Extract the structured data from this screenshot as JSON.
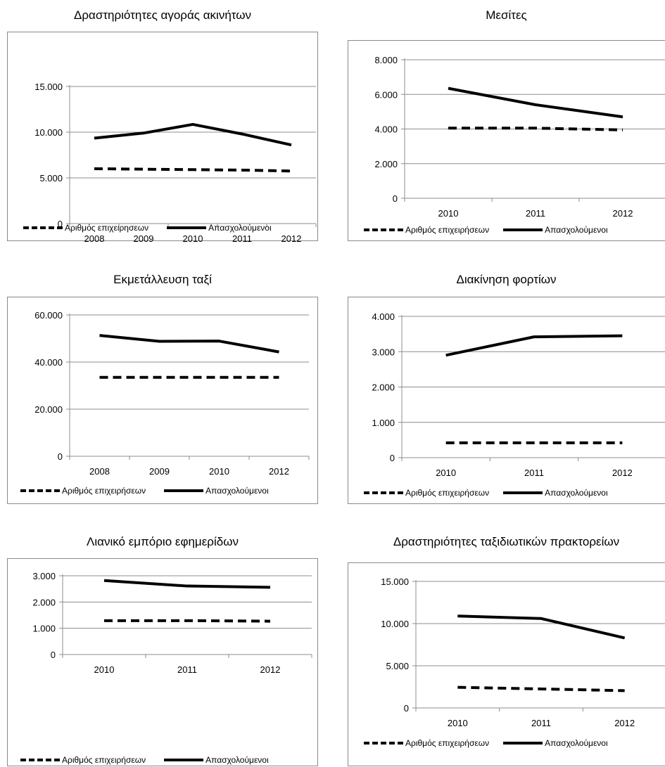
{
  "chart_data": [
    {
      "type": "line",
      "title": "Δραστηριότητες αγοράς ακινήτων",
      "categories": [
        "2008",
        "2009",
        "2010",
        "2011",
        "2012"
      ],
      "y_ticks": [
        "0",
        "5.000",
        "10.000",
        "15.000"
      ],
      "ylim": [
        0,
        15000
      ],
      "grid": true,
      "legend_position": "bottom",
      "series": [
        {
          "name": "Αριθμός επιχειρησεων",
          "style": "dashed",
          "values": [
            6000,
            5950,
            5900,
            5850,
            5750
          ]
        },
        {
          "name": "Απασχολούμενοι",
          "style": "solid",
          "values": [
            9350,
            9900,
            10850,
            9800,
            8600
          ]
        }
      ]
    },
    {
      "type": "line",
      "title": "Μεσίτες",
      "categories": [
        "2010",
        "2011",
        "2012"
      ],
      "y_ticks": [
        "0",
        "2.000",
        "4.000",
        "6.000",
        "8.000"
      ],
      "ylim": [
        0,
        8000
      ],
      "grid": true,
      "legend_position": "bottom",
      "series": [
        {
          "name": "Αριθμός επιχειρήσεων",
          "style": "dashed",
          "values": [
            4050,
            4050,
            3950
          ]
        },
        {
          "name": "Απασχολούμενοι",
          "style": "solid",
          "values": [
            6350,
            5400,
            4700
          ]
        }
      ]
    },
    {
      "type": "line",
      "title": "Εκμετάλλευση ταξί",
      "categories": [
        "2008",
        "2009",
        "2010",
        "2012"
      ],
      "y_ticks": [
        "0",
        "20.000",
        "40.000",
        "60.000"
      ],
      "ylim": [
        0,
        60000
      ],
      "grid": true,
      "legend_position": "bottom",
      "series": [
        {
          "name": "Αριθμός επιχειρήσεων",
          "style": "dashed",
          "values": [
            33500,
            33500,
            33500,
            33500
          ]
        },
        {
          "name": "Απασχολούμενοι",
          "style": "solid",
          "values": [
            51300,
            48800,
            48900,
            44300
          ]
        }
      ]
    },
    {
      "type": "line",
      "title": "Διακίνηση φορτίων",
      "categories": [
        "2010",
        "2011",
        "2012"
      ],
      "y_ticks": [
        "0",
        "1.000",
        "2.000",
        "3.000",
        "4.000"
      ],
      "ylim": [
        0,
        4000
      ],
      "grid": true,
      "legend_position": "bottom",
      "series": [
        {
          "name": "Αριθμός επιχειρήσεων",
          "style": "dashed",
          "values": [
            420,
            420,
            420
          ]
        },
        {
          "name": "Απασχολούμενοι",
          "style": "solid",
          "values": [
            2900,
            3420,
            3450
          ]
        }
      ]
    },
    {
      "type": "line",
      "title": "Λιανικό εμπόριο εφημερίδων",
      "categories": [
        "2010",
        "2011",
        "2012"
      ],
      "y_ticks": [
        "0",
        "1.000",
        "2.000",
        "3.000"
      ],
      "ylim": [
        0,
        3000
      ],
      "grid": true,
      "legend_position": "bottom",
      "series": [
        {
          "name": "Αριθμός επιχειρήσεων",
          "style": "dashed",
          "values": [
            1290,
            1290,
            1270
          ]
        },
        {
          "name": "Απασχολούμενοι",
          "style": "solid",
          "values": [
            2820,
            2610,
            2560
          ]
        }
      ]
    },
    {
      "type": "line",
      "title": "Δραστηριότητες ταξιδιωτικών πρακτορείων",
      "categories": [
        "2010",
        "2011",
        "2012"
      ],
      "y_ticks": [
        "0",
        "5.000",
        "10.000",
        "15.000"
      ],
      "ylim": [
        0,
        15000
      ],
      "grid": true,
      "legend_position": "bottom",
      "series": [
        {
          "name": "Αριθμός επιχειρήσεων",
          "style": "dashed",
          "values": [
            2450,
            2250,
            2050
          ]
        },
        {
          "name": "Απασχολούμενοι",
          "style": "solid",
          "values": [
            10900,
            10600,
            8300
          ]
        }
      ]
    }
  ]
}
